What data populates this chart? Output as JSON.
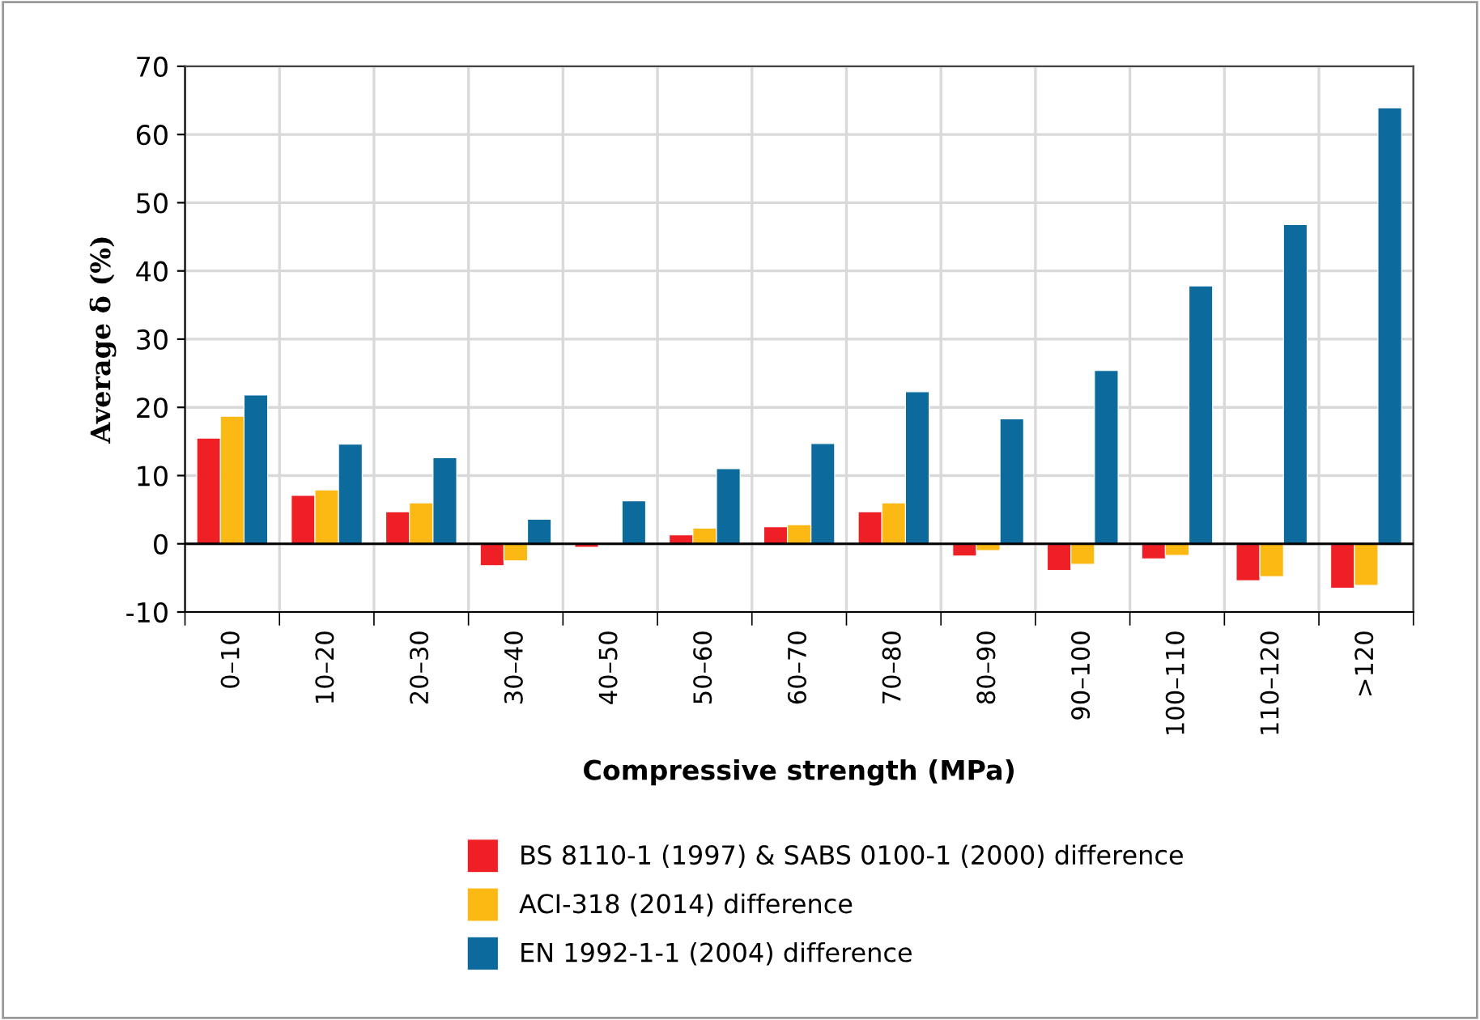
{
  "chart_data": {
    "type": "bar",
    "xlabel": "Compressive strength (MPa)",
    "ylabel": "Average δ (%)",
    "categories": [
      "0–10",
      "10–20",
      "20–30",
      "30–40",
      "40–50",
      "50–60",
      "60–70",
      "70–80",
      "80–90",
      "90–100",
      "100–110",
      "110–120",
      ">120"
    ],
    "series": [
      {
        "name": "BS 8110-1 (1997) & SABS 0100-1 (2000) difference",
        "color": "#ee2026",
        "values": [
          15.5,
          7.1,
          4.7,
          -3.2,
          -0.5,
          1.3,
          2.5,
          4.7,
          -1.8,
          -3.9,
          -2.2,
          -5.4,
          -6.5
        ]
      },
      {
        "name": "ACI-318 (2014) difference",
        "color": "#fdb913",
        "values": [
          18.7,
          7.9,
          6.0,
          -2.5,
          null,
          2.3,
          2.8,
          6.0,
          -1.0,
          -3.0,
          -1.7,
          -4.8,
          -6.1
        ]
      },
      {
        "name": "EN 1992-1-1 (2004) difference",
        "color": "#0c6a9c",
        "values": [
          21.8,
          14.6,
          12.6,
          3.6,
          6.3,
          11.0,
          14.7,
          22.3,
          18.3,
          25.4,
          37.8,
          46.8,
          63.9
        ]
      }
    ],
    "ylim": [
      -10,
      70
    ],
    "yticks": [
      -10,
      0,
      10,
      20,
      30,
      40,
      50,
      60,
      70
    ],
    "grid": true,
    "legend": "bottom"
  }
}
